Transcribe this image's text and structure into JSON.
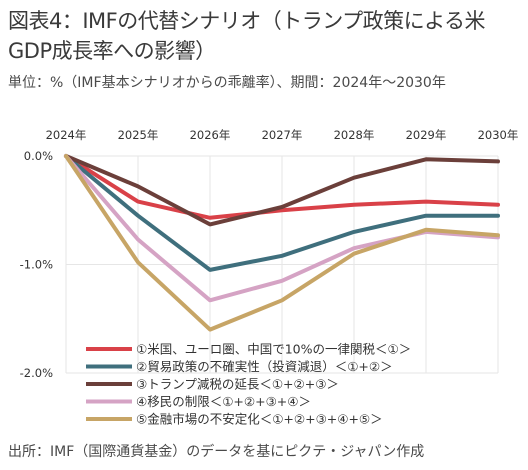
{
  "header": {
    "title": "図表4：IMFの代替シナリオ（トランプ政策による米GDP成長率への影響）",
    "subtitle": "単位：%（IMF基本シナリオからの乖離率）、期間：2024年～2030年"
  },
  "footer": {
    "source": "出所：IMF（国際通貨基金）のデータを基にピクテ・ジャパン作成"
  },
  "chart_data": {
    "type": "line",
    "x": [
      "2024年",
      "2025年",
      "2026年",
      "2027年",
      "2028年",
      "2029年",
      "2030年"
    ],
    "y_ticks": [
      {
        "value": 0,
        "label": "0.0%"
      },
      {
        "value": -1,
        "label": "-1.0%"
      },
      {
        "value": -2,
        "label": "-2.0%"
      }
    ],
    "ylim": [
      -2.0,
      0.0
    ],
    "grid": true,
    "legend_position": "bottom-center",
    "series": [
      {
        "name": "①米国、ユーロ圏、中国で10%の一律関税＜①＞",
        "color": "#d94148",
        "values": [
          0,
          -0.42,
          -0.57,
          -0.5,
          -0.45,
          -0.42,
          -0.45
        ]
      },
      {
        "name": "②貿易政策の不確実性（投資減退）＜①+②＞",
        "color": "#3f6f7d",
        "values": [
          0,
          -0.55,
          -1.05,
          -0.92,
          -0.7,
          -0.55,
          -0.55
        ]
      },
      {
        "name": "③トランプ減税の延長＜①+②+③＞",
        "color": "#6b3f3a",
        "values": [
          0,
          -0.28,
          -0.63,
          -0.47,
          -0.2,
          -0.03,
          -0.05
        ]
      },
      {
        "name": "④移民の制限＜①+②+③+④＞",
        "color": "#d5a3c4",
        "values": [
          0,
          -0.77,
          -1.33,
          -1.15,
          -0.85,
          -0.7,
          -0.75
        ]
      },
      {
        "name": "⑤金融市場の不安定化＜①+②+③+④+⑤＞",
        "color": "#c7a566",
        "values": [
          0,
          -0.98,
          -1.6,
          -1.33,
          -0.9,
          -0.68,
          -0.73
        ]
      }
    ]
  }
}
